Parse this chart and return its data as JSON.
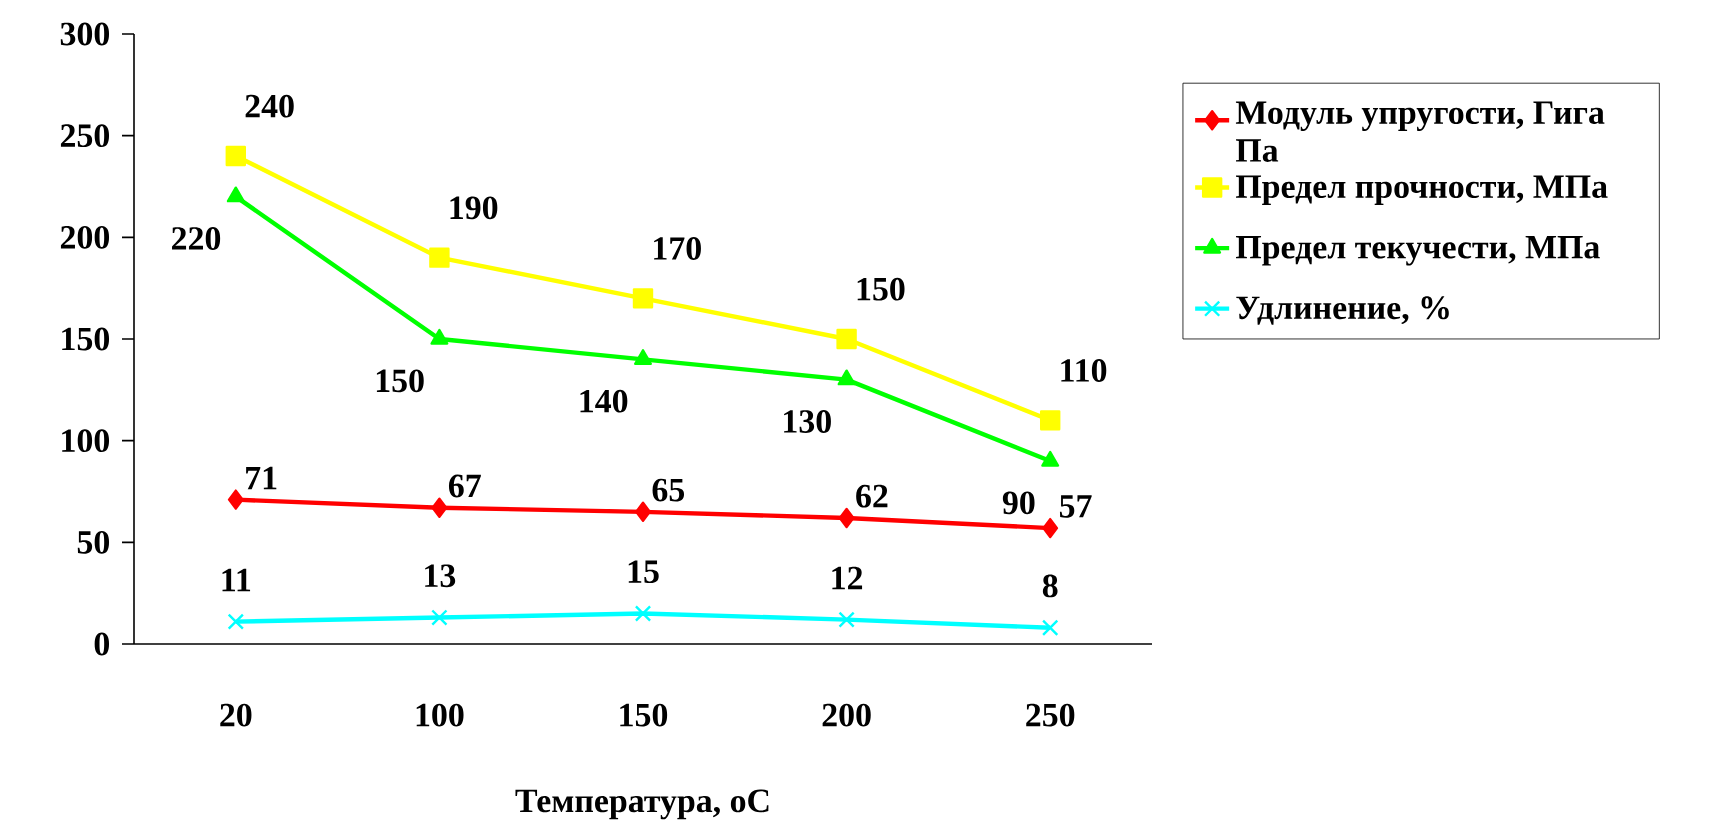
{
  "chart_data": {
    "type": "line",
    "xlabel": "Температура, оС",
    "categories": [
      "20",
      "100",
      "150",
      "200",
      "250"
    ],
    "series": [
      {
        "name": "Модуль упругости, Гига Па",
        "color": "#ff0000",
        "marker": "diamond",
        "values": [
          71,
          67,
          65,
          62,
          57
        ]
      },
      {
        "name": "Предел прочности, МПа",
        "color": "#ffff00",
        "marker": "square",
        "values": [
          240,
          190,
          170,
          150,
          110
        ]
      },
      {
        "name": "Предел текучести, МПа",
        "color": "#00ff00",
        "marker": "triangle",
        "values": [
          220,
          150,
          140,
          130,
          90
        ]
      },
      {
        "name": "Удлинение, %",
        "color": "#00ffff",
        "marker": "cross",
        "values": [
          11,
          13,
          15,
          12,
          8
        ]
      }
    ],
    "ylim": [
      0,
      300
    ],
    "yticks": [
      0,
      50,
      100,
      150,
      200,
      250,
      300
    ],
    "data_labels": true,
    "legend": "right",
    "grid": false,
    "line_style": "solid"
  }
}
